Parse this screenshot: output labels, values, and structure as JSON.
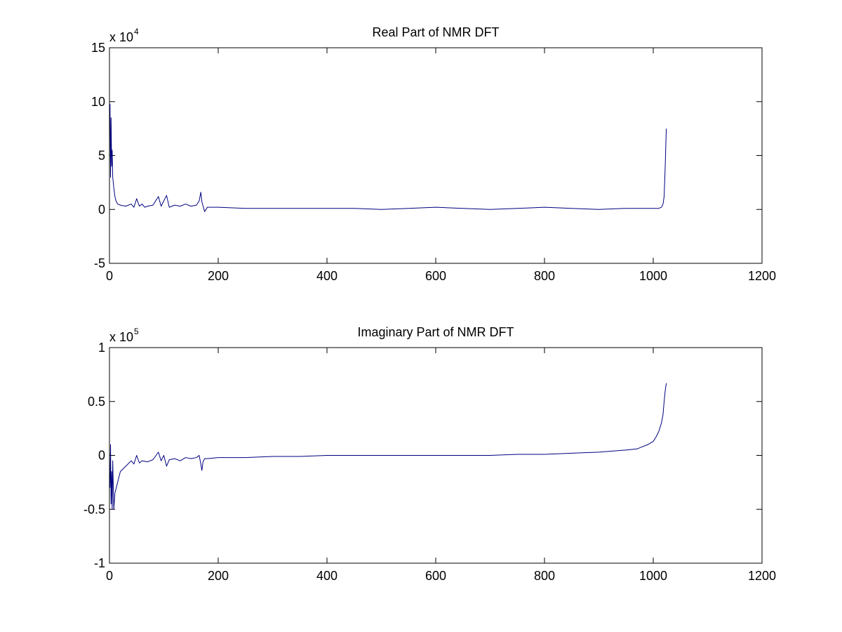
{
  "chart_data": [
    {
      "type": "line",
      "title": "Real Part of NMR DFT",
      "xlabel": "",
      "ylabel": "",
      "xlim": [
        0,
        1200
      ],
      "ylim": [
        -5,
        15
      ],
      "xticks": [
        0,
        200,
        400,
        600,
        800,
        1000,
        1200
      ],
      "yticks": [
        -5,
        0,
        5,
        10,
        15
      ],
      "xtick_labels": [
        "0",
        "200",
        "400",
        "600",
        "800",
        "1000",
        "1200"
      ],
      "ytick_labels": [
        "-5",
        "0",
        "5",
        "10",
        "15"
      ],
      "y_multiplier": {
        "base": "x 10",
        "exponent": "4"
      },
      "grid": false,
      "line_color": "#000080",
      "series": [
        {
          "x": [
            1,
            2,
            3,
            4,
            5,
            6,
            8,
            10,
            12,
            15,
            20,
            30,
            40,
            45,
            50,
            55,
            60,
            65,
            70,
            80,
            90,
            95,
            100,
            105,
            110,
            115,
            120,
            130,
            140,
            150,
            160,
            165,
            168,
            170,
            175,
            180,
            200,
            250,
            300,
            350,
            400,
            450,
            500,
            550,
            600,
            650,
            700,
            750,
            800,
            850,
            900,
            950,
            980,
            1000,
            1010,
            1015,
            1018,
            1020,
            1022,
            1024
          ],
          "y": [
            9.8,
            3.0,
            8.5,
            4.0,
            5.5,
            3.0,
            2.0,
            1.2,
            0.8,
            0.5,
            0.4,
            0.3,
            0.5,
            0.2,
            1.0,
            0.3,
            0.5,
            0.2,
            0.3,
            0.4,
            1.2,
            0.3,
            0.8,
            1.3,
            0.2,
            0.3,
            0.4,
            0.3,
            0.5,
            0.3,
            0.4,
            0.8,
            1.6,
            0.7,
            -0.2,
            0.2,
            0.2,
            0.1,
            0.1,
            0.1,
            0.1,
            0.1,
            0.0,
            0.1,
            0.2,
            0.1,
            0.0,
            0.1,
            0.2,
            0.1,
            0.0,
            0.1,
            0.1,
            0.1,
            0.1,
            0.2,
            0.5,
            1.2,
            4.0,
            7.5
          ]
        }
      ]
    },
    {
      "type": "line",
      "title": "Imaginary Part of NMR DFT",
      "xlabel": "",
      "ylabel": "",
      "xlim": [
        0,
        1200
      ],
      "ylim": [
        -1,
        1
      ],
      "xticks": [
        0,
        200,
        400,
        600,
        800,
        1000,
        1200
      ],
      "yticks": [
        -1,
        -0.5,
        0,
        0.5,
        1
      ],
      "xtick_labels": [
        "0",
        "200",
        "400",
        "600",
        "800",
        "1000",
        "1200"
      ],
      "ytick_labels": [
        "-1",
        "-0.5",
        "0",
        "0.5",
        "1"
      ],
      "y_multiplier": {
        "base": "x 10",
        "exponent": "5"
      },
      "grid": false,
      "line_color": "#000080",
      "series": [
        {
          "x": [
            1,
            2,
            3,
            4,
            5,
            6,
            8,
            10,
            15,
            20,
            30,
            40,
            45,
            50,
            55,
            60,
            70,
            80,
            90,
            95,
            100,
            105,
            110,
            120,
            130,
            140,
            150,
            160,
            165,
            168,
            170,
            172,
            175,
            180,
            200,
            250,
            300,
            350,
            400,
            450,
            500,
            550,
            600,
            650,
            700,
            750,
            800,
            850,
            900,
            950,
            970,
            980,
            990,
            1000,
            1005,
            1010,
            1015,
            1018,
            1020,
            1022,
            1024
          ],
          "y": [
            -0.3,
            0.1,
            -0.45,
            -0.15,
            -0.5,
            -0.05,
            -0.5,
            -0.35,
            -0.25,
            -0.15,
            -0.1,
            -0.05,
            -0.08,
            0.0,
            -0.07,
            -0.05,
            -0.06,
            -0.04,
            0.03,
            -0.05,
            0.0,
            -0.1,
            -0.04,
            -0.03,
            -0.05,
            -0.02,
            -0.03,
            -0.02,
            0.0,
            -0.08,
            -0.14,
            -0.06,
            -0.03,
            -0.03,
            -0.02,
            -0.02,
            -0.01,
            -0.01,
            0.0,
            0.0,
            0.0,
            0.0,
            0.0,
            0.0,
            0.0,
            0.01,
            0.01,
            0.02,
            0.03,
            0.05,
            0.06,
            0.08,
            0.1,
            0.13,
            0.17,
            0.22,
            0.3,
            0.38,
            0.5,
            0.6,
            0.67
          ]
        }
      ]
    }
  ]
}
